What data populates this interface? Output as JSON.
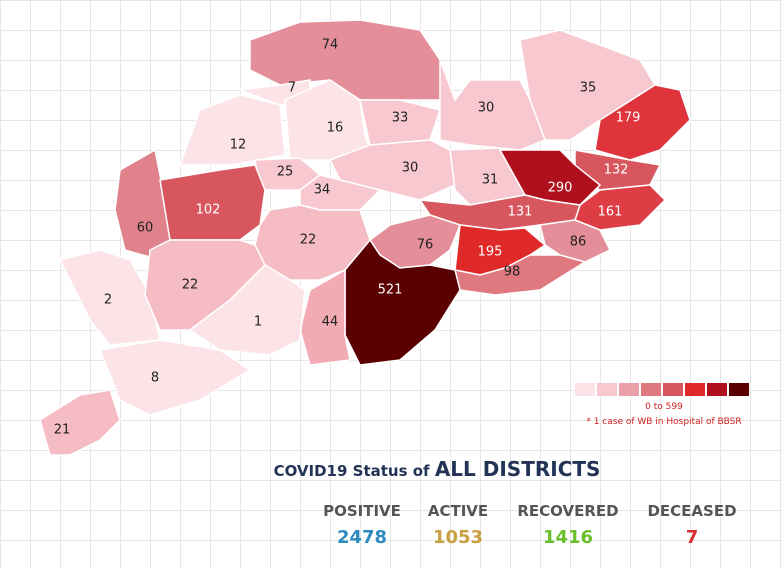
{
  "districts": [
    {
      "value": "74",
      "color": "#e38e98"
    },
    {
      "value": "7",
      "color": "#fbe3e7"
    },
    {
      "value": "35",
      "color": "#f7c8cf"
    },
    {
      "value": "179",
      "color": "#e0343c"
    },
    {
      "value": "12",
      "color": "#fbe3e7"
    },
    {
      "value": "16",
      "color": "#fbe3e7"
    },
    {
      "value": "33",
      "color": "#f7c8cf"
    },
    {
      "value": "30",
      "color": "#f7c8cf"
    },
    {
      "value": "132",
      "color": "#d8575f"
    },
    {
      "value": "25",
      "color": "#f7c8cf"
    },
    {
      "value": "30",
      "color": "#f7c8cf"
    },
    {
      "value": "31",
      "color": "#f7c8cf"
    },
    {
      "value": "290",
      "color": "#b0101e"
    },
    {
      "value": "60",
      "color": "#e0828c"
    },
    {
      "value": "102",
      "color": "#d8575f"
    },
    {
      "value": "34",
      "color": "#f7c8cf"
    },
    {
      "value": "161",
      "color": "#de3d45"
    },
    {
      "value": "131",
      "color": "#d8575f"
    },
    {
      "value": "22",
      "color": "#f5bcc4"
    },
    {
      "value": "86",
      "color": "#e38e98"
    },
    {
      "value": "76",
      "color": "#e38e98"
    },
    {
      "value": "195",
      "color": "#e02a2a"
    },
    {
      "value": "98",
      "color": "#e07880"
    },
    {
      "value": "521",
      "color": "#5a0000"
    },
    {
      "value": "2",
      "color": "#fbe3e7"
    },
    {
      "value": "22",
      "color": "#f5bcc4"
    },
    {
      "value": "44",
      "color": "#f2aab3"
    },
    {
      "value": "1",
      "color": "#fbe3e7"
    },
    {
      "value": "8",
      "color": "#fbe3e7"
    },
    {
      "value": "21",
      "color": "#f5bcc4"
    }
  ],
  "legend": {
    "colors": [
      "#fbe3e7",
      "#f7c8cf",
      "#e9a0a8",
      "#e07880",
      "#d8575f",
      "#e02a2a",
      "#b0101e",
      "#5a0000"
    ],
    "range_label": "0 to 599",
    "note": "* 1 case of WB in Hospital of BBSR"
  },
  "status": {
    "title_prefix": "COVID19 Status of",
    "title_main": "ALL DISTRICTS",
    "items": [
      {
        "label": "POSITIVE",
        "value": "2478",
        "color": "#2e8bc0"
      },
      {
        "label": "ACTIVE",
        "value": "1053",
        "color": "#c8a040"
      },
      {
        "label": "RECOVERED",
        "value": "1416",
        "color": "#6abf2a"
      },
      {
        "label": "DECEASED",
        "value": "7",
        "color": "#d83030"
      }
    ]
  }
}
